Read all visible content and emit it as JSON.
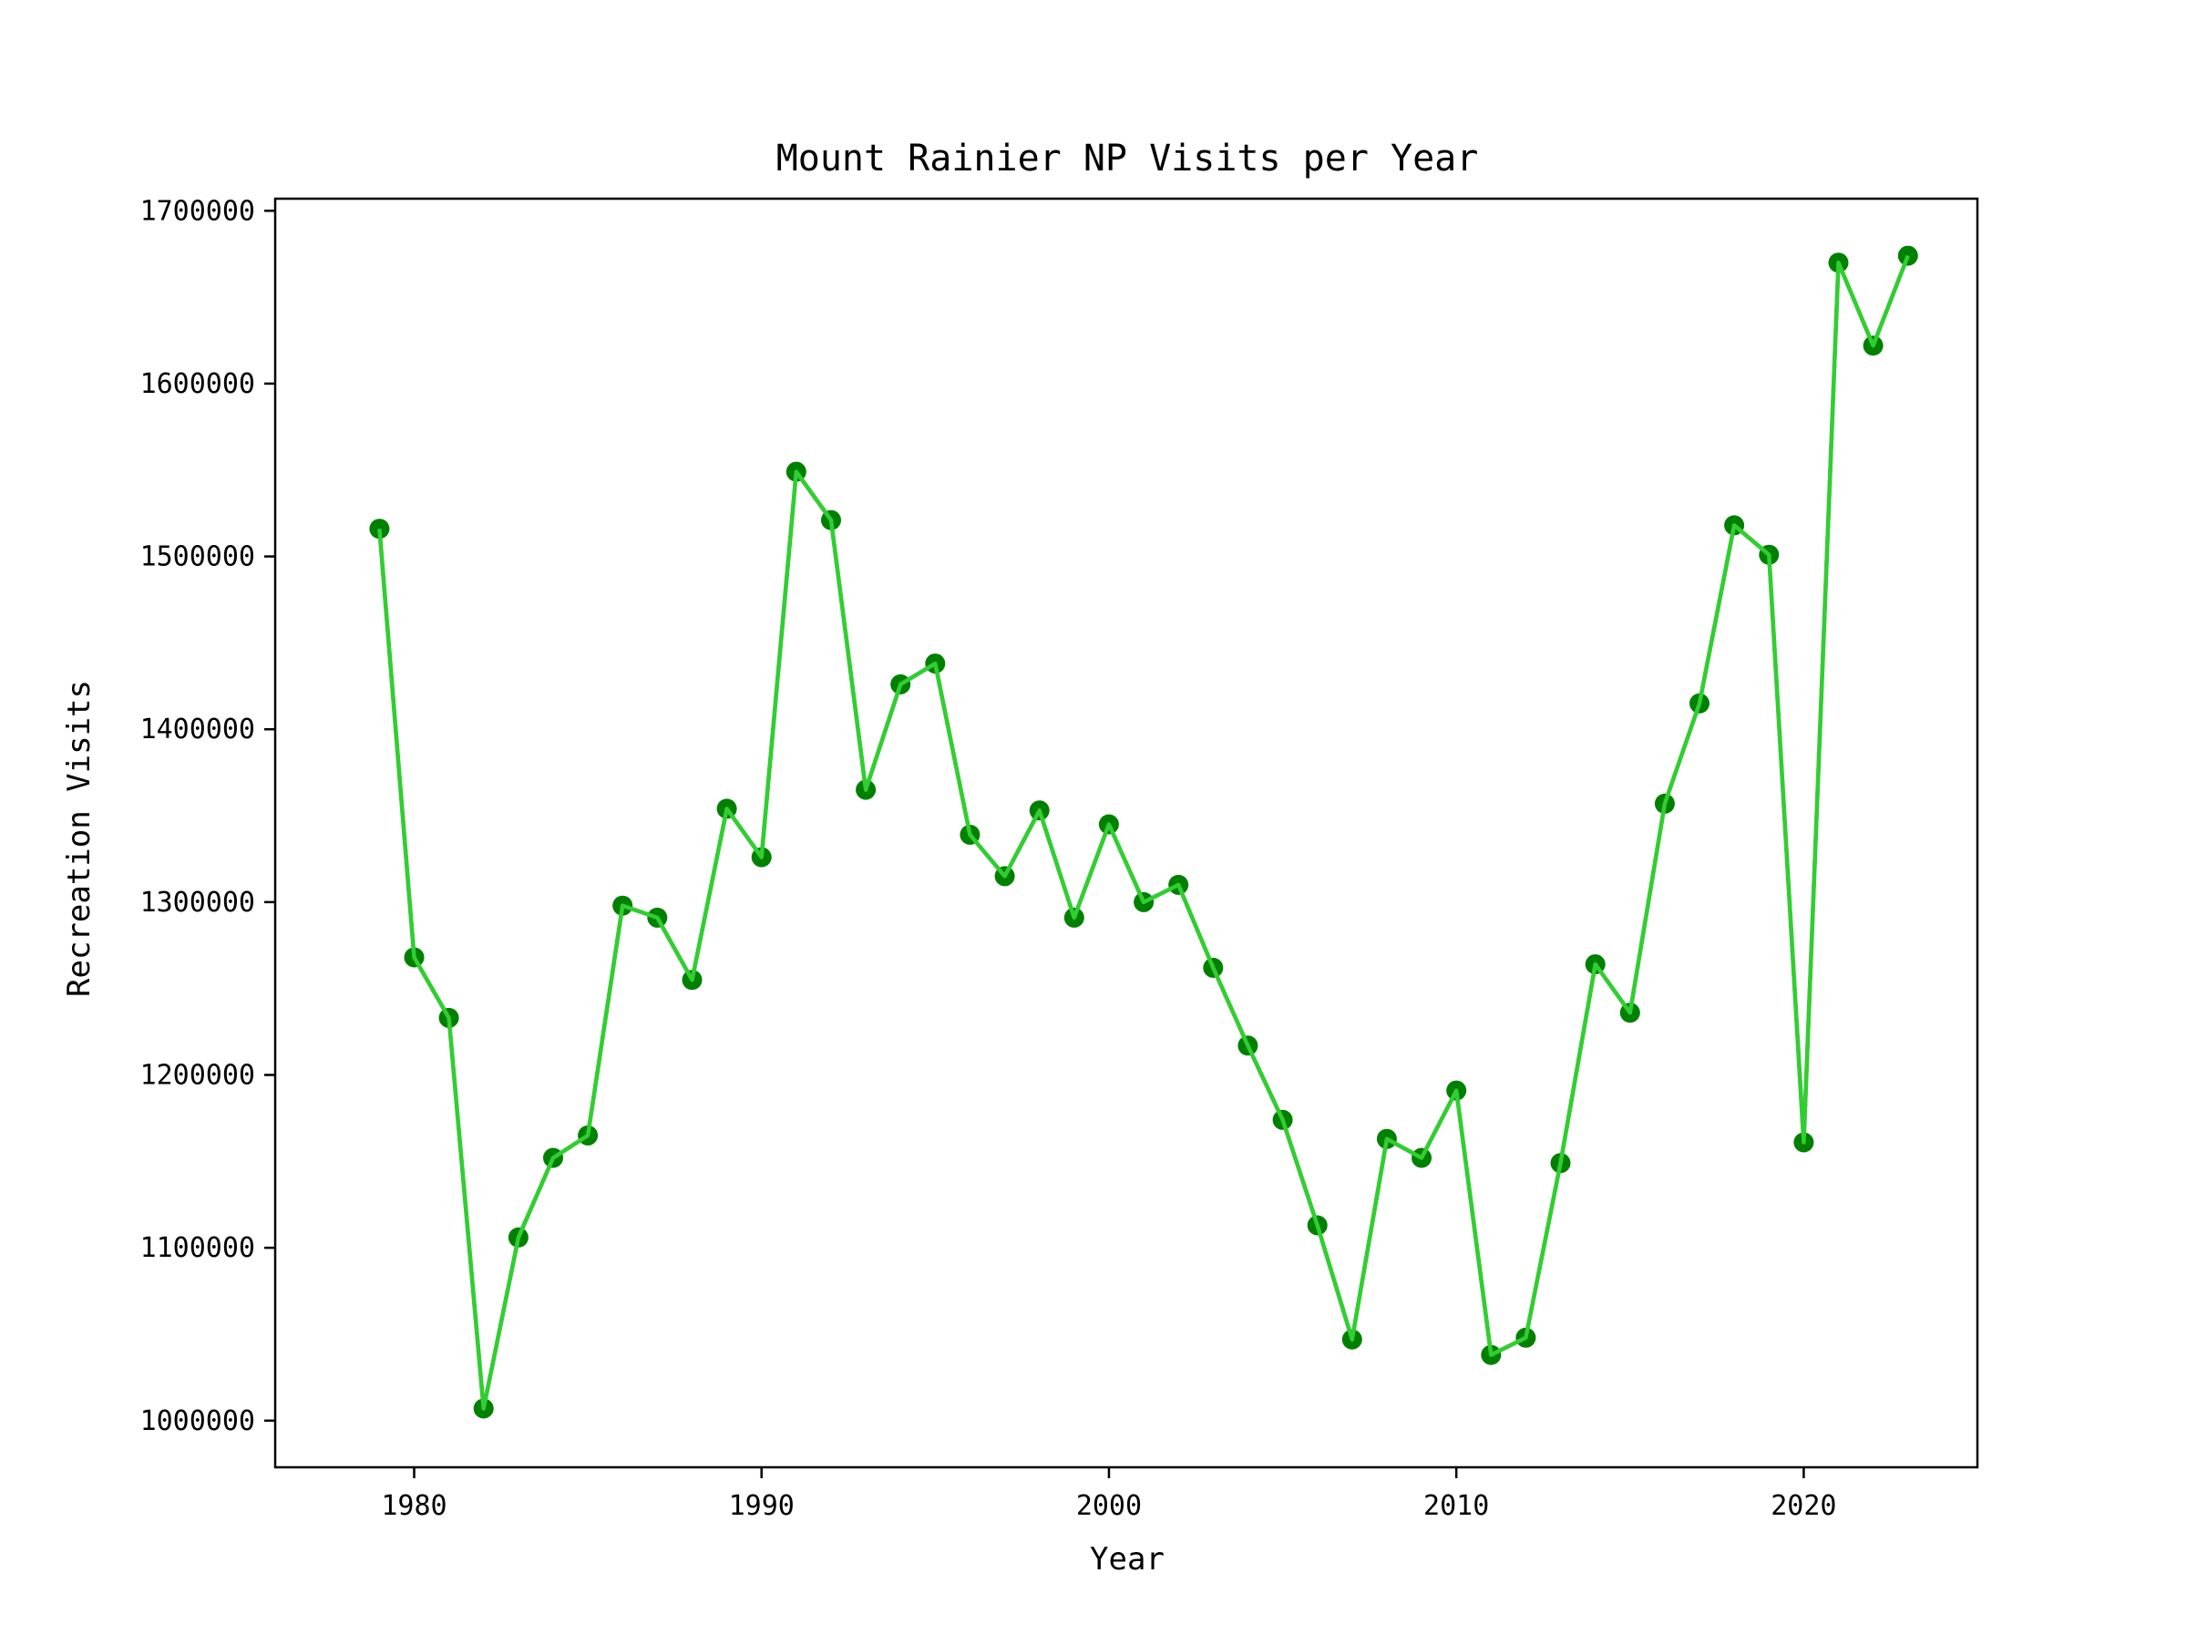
{
  "chart_data": {
    "type": "line",
    "title": "Mount Rainier NP Visits per Year",
    "xlabel": "Year",
    "ylabel": "Recreation Visits",
    "xlim": [
      1976,
      2025
    ],
    "ylim": [
      973000,
      1707000
    ],
    "xticks": [
      1980,
      1990,
      2000,
      2010,
      2020
    ],
    "yticks": [
      1000000,
      1100000,
      1200000,
      1300000,
      1400000,
      1500000,
      1600000,
      1700000
    ],
    "grid": false,
    "legend": "none",
    "line_color": "#32cd32",
    "marker_color": "#008000",
    "x": [
      1979,
      1980,
      1981,
      1982,
      1983,
      1984,
      1985,
      1986,
      1987,
      1988,
      1989,
      1990,
      1991,
      1992,
      1993,
      1994,
      1995,
      1996,
      1997,
      1998,
      1999,
      2000,
      2001,
      2002,
      2003,
      2004,
      2005,
      2006,
      2007,
      2008,
      2009,
      2010,
      2011,
      2012,
      2013,
      2014,
      2015,
      2016,
      2017,
      2018,
      2019,
      2020,
      2021,
      2022,
      2023
    ],
    "series": [
      {
        "values": [
          1516000,
          1268000,
          1233000,
          1007000,
          1106000,
          1152000,
          1165000,
          1298000,
          1291000,
          1255000,
          1354000,
          1326000,
          1549000,
          1521000,
          1365000,
          1426000,
          1438000,
          1339000,
          1315000,
          1353000,
          1291000,
          1345000,
          1300000,
          1310000,
          1262000,
          1217000,
          1174000,
          1113000,
          1047000,
          1163000,
          1152000,
          1191000,
          1038000,
          1048000,
          1149000,
          1264000,
          1236000,
          1357000,
          1415000,
          1518000,
          1501000,
          1161000,
          1670000,
          1622000,
          1674000
        ]
      }
    ]
  }
}
